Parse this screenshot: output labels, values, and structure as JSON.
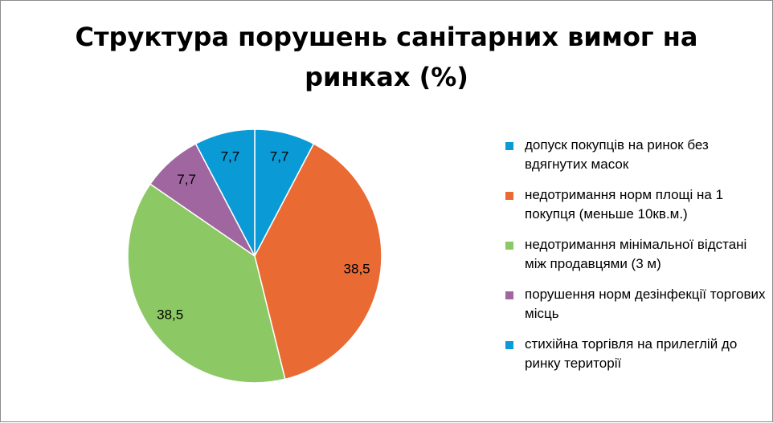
{
  "chart_data": {
    "type": "pie",
    "title_lines": [
      "Структура порушень санітарних вимог на",
      "ринках  (%)"
    ],
    "slices": [
      {
        "label": "допуск покупців на ринок без вдягнутих масок",
        "value": 7.7,
        "display": "7,7",
        "color": "#0a9ad6"
      },
      {
        "label": "недотримання  норм площі на 1 покупця (меньше 10кв.м.)",
        "value": 38.5,
        "display": "38,5",
        "color": "#e96a32"
      },
      {
        "label": "недотримання мінімальної відстані між продавцями (3 м)",
        "value": 38.5,
        "display": "38,5",
        "color": "#8cc863"
      },
      {
        "label": "порушення норм дезінфекції торгових місць",
        "value": 7.7,
        "display": "7,7",
        "color": "#a066a0"
      },
      {
        "label": "стихійна торгівля на прилеглій до ринку території",
        "value": 7.7,
        "display": "7,7",
        "color": "#0a9ad6"
      }
    ],
    "legend_position": "right"
  }
}
